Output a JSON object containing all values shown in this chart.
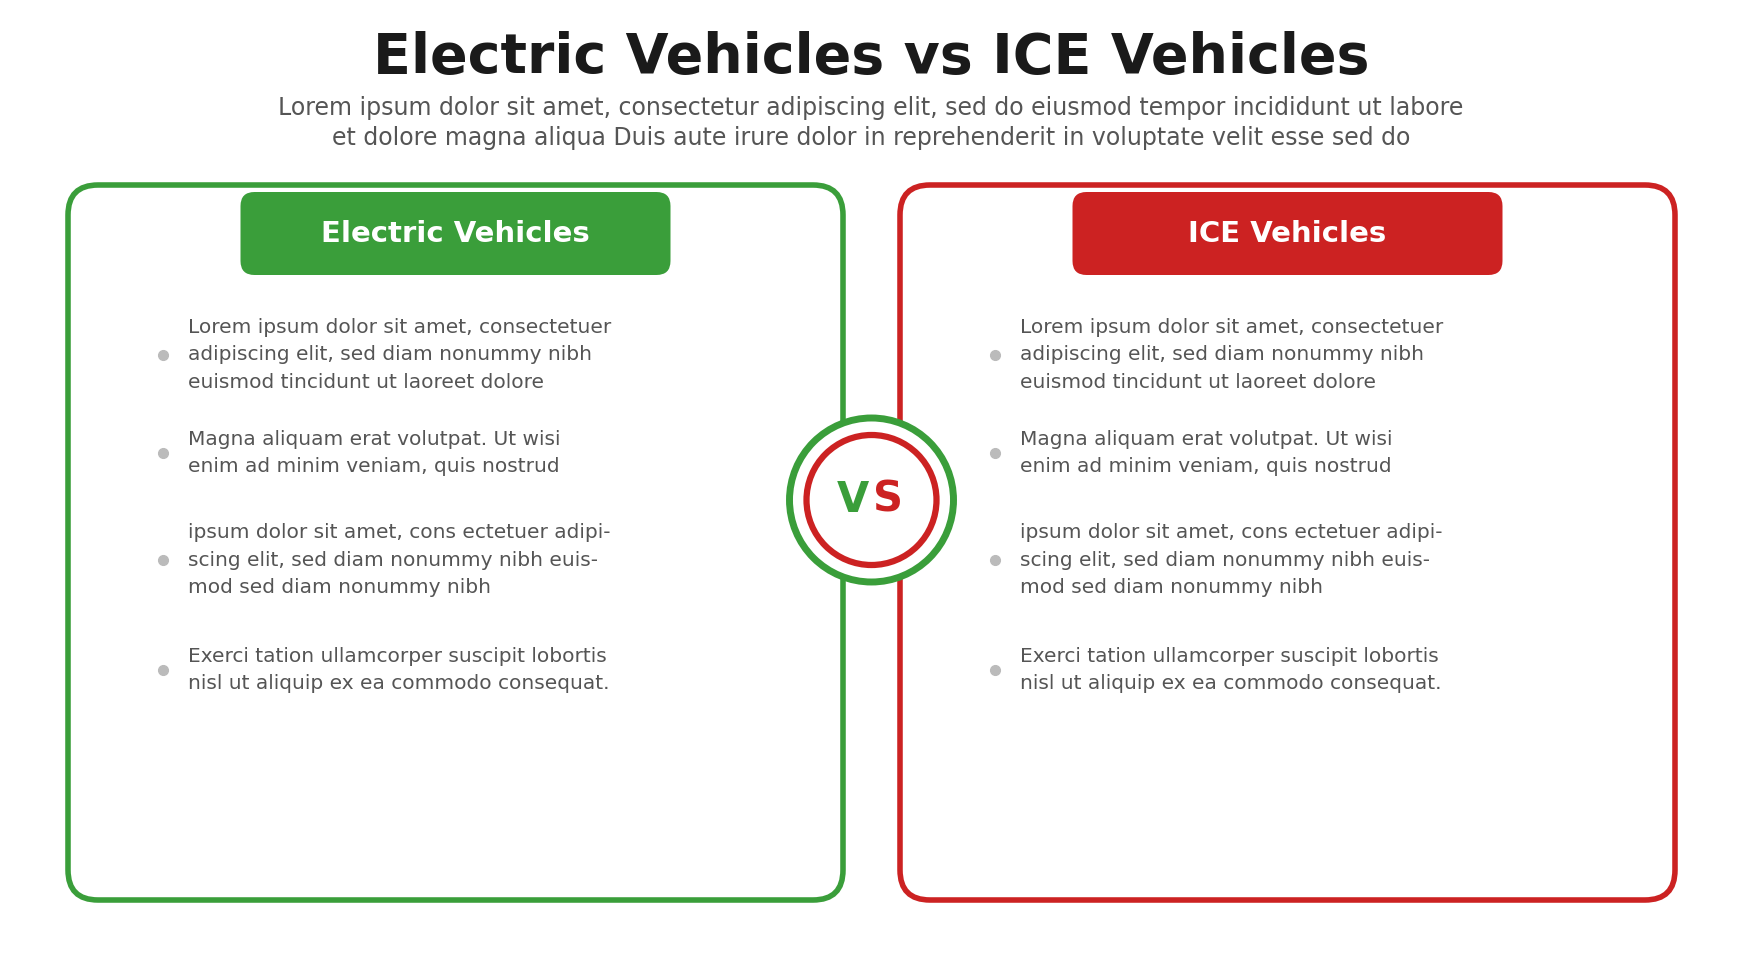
{
  "title": "Electric Vehicles vs ICE Vehicles",
  "subtitle_line1": "Lorem ipsum dolor sit amet, consectetur adipiscing elit, sed do eiusmod tempor incididunt ut labore",
  "subtitle_line2": "et dolore magna aliqua Duis aute irure dolor in reprehenderit in voluptate velit esse sed do",
  "left_title": "Electric Vehicles",
  "right_title": "ICE Vehicles",
  "left_color": "#3a9e3a",
  "right_color": "#cc2222",
  "vs_green": "#3a9e3a",
  "vs_red": "#cc2222",
  "background": "#ffffff",
  "bullet_color": "#bbbbbb",
  "text_color": "#555555",
  "left_items": [
    "Lorem ipsum dolor sit amet, consectetuer\nadipiscing elit, sed diam nonummy nibh\neuismod tincidunt ut laoreet dolore",
    "Magna aliquam erat volutpat. Ut wisi\nenim ad minim veniam, quis nostrud",
    "ipsum dolor sit amet, cons ectetuer adipi-\nscing elit, sed diam nonummy nibh euis-\nmod sed diam nonummy nibh",
    "Exerci tation ullamcorper suscipit lobortis\nnisl ut aliquip ex ea commodo consequat."
  ],
  "right_items": [
    "Lorem ipsum dolor sit amet, consectetuer\nadipiscing elit, sed diam nonummy nibh\neuismod tincidunt ut laoreet dolore",
    "Magna aliquam erat volutpat. Ut wisi\nenim ad minim veniam, quis nostrud",
    "ipsum dolor sit amet, cons ectetuer adipi-\nscing elit, sed diam nonummy nibh euis-\nmod sed diam nonummy nibh",
    "Exerci tation ullamcorper suscipit lobortis\nnisl ut aliquip ex ea commodo consequat."
  ],
  "title_fontsize": 40,
  "subtitle_fontsize": 17,
  "header_fontsize": 21,
  "body_fontsize": 14.5,
  "vs_fontsize": 30,
  "fig_width": 17.42,
  "fig_height": 9.8,
  "dpi": 100
}
